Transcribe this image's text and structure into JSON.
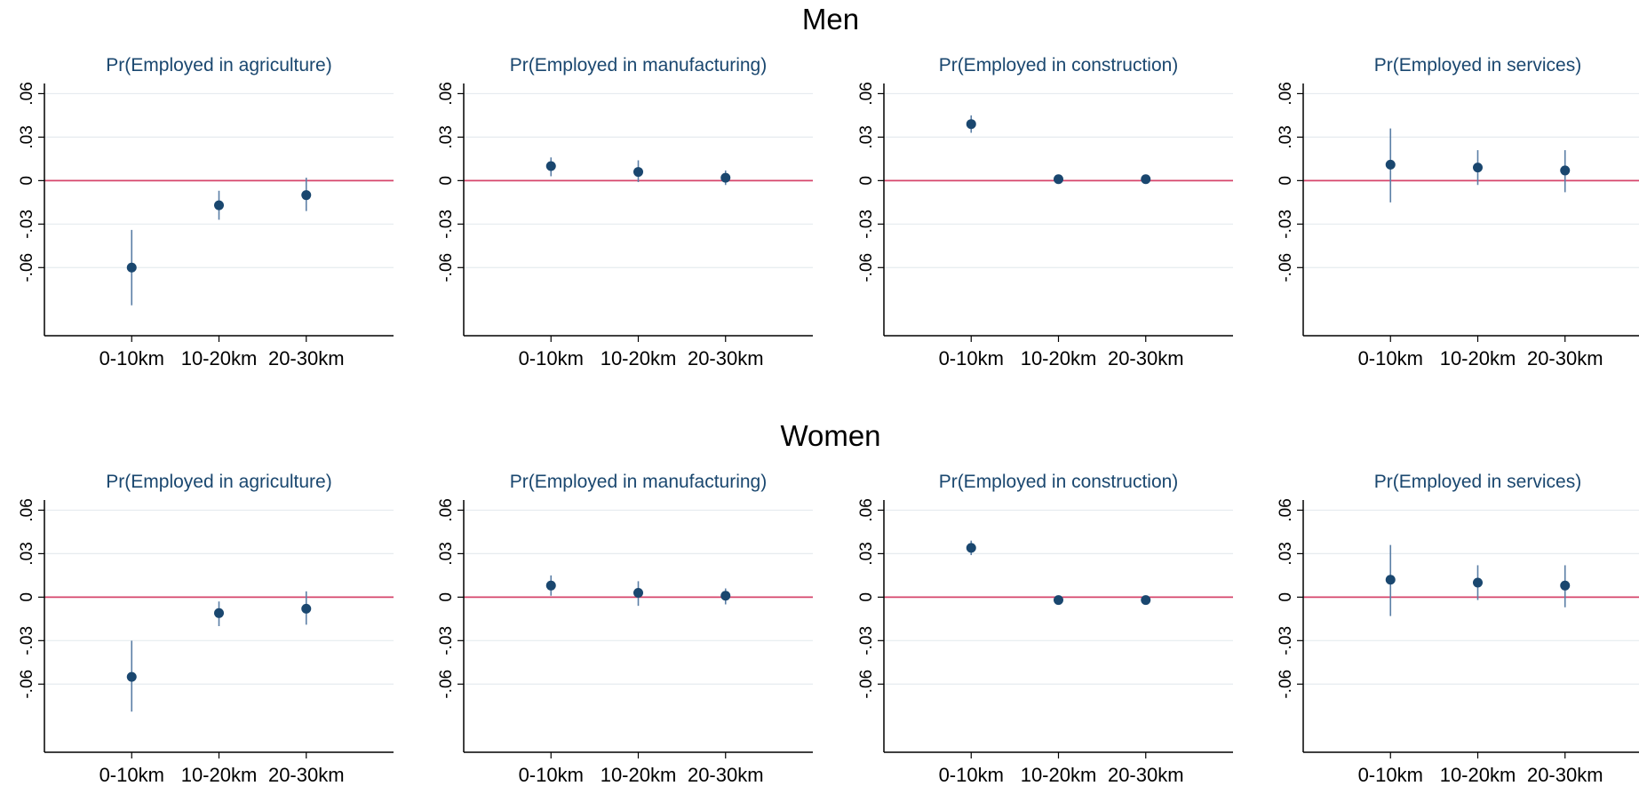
{
  "groups": [
    {
      "title": "Men"
    },
    {
      "title": "Women"
    }
  ],
  "colors": {
    "marker": "#1a476f",
    "ci": "#5b7fa6",
    "refline": "#d6456b",
    "grid": "#e6ebef"
  },
  "chart_data": [
    {
      "type": "scatter",
      "group": "Men",
      "title": "Pr(Employed in agriculture)",
      "categories": [
        "0-10km",
        "10-20km",
        "20-30km"
      ],
      "yticks": [
        ".06",
        ".03",
        "0",
        "-.03",
        "-.06"
      ],
      "ylim": [
        -0.107,
        0.067
      ],
      "grid": true,
      "refline": 0,
      "series": [
        {
          "values": [
            -0.06,
            -0.017,
            -0.01
          ],
          "ci_low": [
            -0.086,
            -0.027,
            -0.021
          ],
          "ci_high": [
            -0.034,
            -0.007,
            0.002
          ]
        }
      ]
    },
    {
      "type": "scatter",
      "group": "Men",
      "title": "Pr(Employed in manufacturing)",
      "categories": [
        "0-10km",
        "10-20km",
        "20-30km"
      ],
      "yticks": [
        ".06",
        ".03",
        "0",
        "-.03",
        "-.06"
      ],
      "ylim": [
        -0.107,
        0.067
      ],
      "grid": true,
      "refline": 0,
      "series": [
        {
          "values": [
            0.01,
            0.006,
            0.002
          ],
          "ci_low": [
            0.003,
            -0.001,
            -0.003
          ],
          "ci_high": [
            0.016,
            0.014,
            0.007
          ]
        }
      ]
    },
    {
      "type": "scatter",
      "group": "Men",
      "title": "Pr(Employed in construction)",
      "categories": [
        "0-10km",
        "10-20km",
        "20-30km"
      ],
      "yticks": [
        ".06",
        ".03",
        "0",
        "-.03",
        "-.06"
      ],
      "ylim": [
        -0.107,
        0.067
      ],
      "grid": true,
      "refline": 0,
      "series": [
        {
          "values": [
            0.039,
            0.001,
            0.001
          ],
          "ci_low": [
            0.033,
            -0.001,
            -0.001
          ],
          "ci_high": [
            0.045,
            0.003,
            0.003
          ]
        }
      ]
    },
    {
      "type": "scatter",
      "group": "Men",
      "title": "Pr(Employed in services)",
      "categories": [
        "0-10km",
        "10-20km",
        "20-30km"
      ],
      "yticks": [
        ".06",
        ".03",
        "0",
        "-.03",
        "-.06"
      ],
      "ylim": [
        -0.107,
        0.067
      ],
      "grid": true,
      "refline": 0,
      "series": [
        {
          "values": [
            0.011,
            0.009,
            0.007
          ],
          "ci_low": [
            -0.015,
            -0.003,
            -0.008
          ],
          "ci_high": [
            0.036,
            0.021,
            0.021
          ]
        }
      ]
    },
    {
      "type": "scatter",
      "group": "Women",
      "title": "Pr(Employed in agriculture)",
      "categories": [
        "0-10km",
        "10-20km",
        "20-30km"
      ],
      "yticks": [
        ".06",
        ".03",
        "0",
        "-.03",
        "-.06"
      ],
      "ylim": [
        -0.107,
        0.067
      ],
      "grid": true,
      "refline": 0,
      "series": [
        {
          "values": [
            -0.055,
            -0.011,
            -0.008
          ],
          "ci_low": [
            -0.079,
            -0.02,
            -0.019
          ],
          "ci_high": [
            -0.03,
            -0.003,
            0.004
          ]
        }
      ]
    },
    {
      "type": "scatter",
      "group": "Women",
      "title": "Pr(Employed in manufacturing)",
      "categories": [
        "0-10km",
        "10-20km",
        "20-30km"
      ],
      "yticks": [
        ".06",
        ".03",
        "0",
        "-.03",
        "-.06"
      ],
      "ylim": [
        -0.107,
        0.067
      ],
      "grid": true,
      "refline": 0,
      "series": [
        {
          "values": [
            0.008,
            0.003,
            0.001
          ],
          "ci_low": [
            0.001,
            -0.006,
            -0.005
          ],
          "ci_high": [
            0.015,
            0.011,
            0.006
          ]
        }
      ]
    },
    {
      "type": "scatter",
      "group": "Women",
      "title": "Pr(Employed in construction)",
      "categories": [
        "0-10km",
        "10-20km",
        "20-30km"
      ],
      "yticks": [
        ".06",
        ".03",
        "0",
        "-.03",
        "-.06"
      ],
      "ylim": [
        -0.107,
        0.067
      ],
      "grid": true,
      "refline": 0,
      "series": [
        {
          "values": [
            0.034,
            -0.002,
            -0.002
          ],
          "ci_low": [
            0.029,
            -0.004,
            -0.004
          ],
          "ci_high": [
            0.039,
            0.0,
            0.0
          ]
        }
      ]
    },
    {
      "type": "scatter",
      "group": "Women",
      "title": "Pr(Employed in services)",
      "categories": [
        "0-10km",
        "10-20km",
        "20-30km"
      ],
      "yticks": [
        ".06",
        ".03",
        "0",
        "-.03",
        "-.06"
      ],
      "ylim": [
        -0.107,
        0.067
      ],
      "grid": true,
      "refline": 0,
      "series": [
        {
          "values": [
            0.012,
            0.01,
            0.008
          ],
          "ci_low": [
            -0.013,
            -0.002,
            -0.007
          ],
          "ci_high": [
            0.036,
            0.022,
            0.022
          ]
        }
      ]
    }
  ]
}
